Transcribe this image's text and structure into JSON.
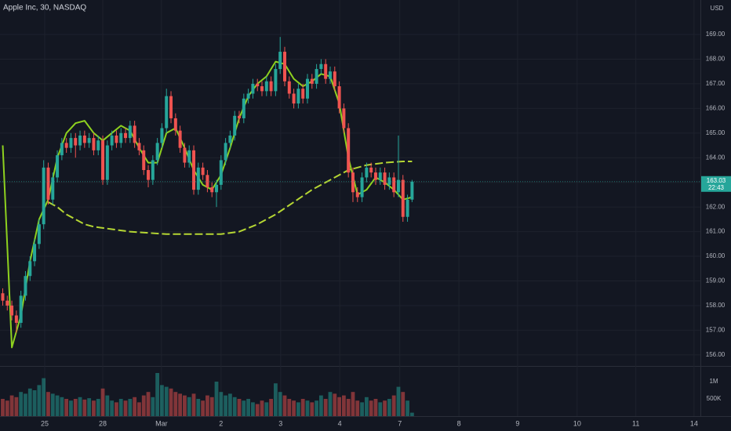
{
  "chart_data": {
    "type": "candlestick",
    "title": "Apple Inc, 30, NASDAQ",
    "currency": "USD",
    "last_price": 163.03,
    "countdown": "22:43",
    "up_color": "#26a69a",
    "down_color": "#ef5350",
    "xlim": [
      -0.6,
      153.4
    ],
    "xticks": [
      {
        "value": 9.23,
        "label": "25"
      },
      {
        "value": 22.0,
        "label": "28"
      },
      {
        "value": 34.9,
        "label": "Mar"
      },
      {
        "value": 48.0,
        "label": "2"
      },
      {
        "value": 61.1,
        "label": "3"
      },
      {
        "value": 74.1,
        "label": "4"
      },
      {
        "value": 87.3,
        "label": "7"
      },
      {
        "value": 100.3,
        "label": "8"
      },
      {
        "value": 113.2,
        "label": "9"
      },
      {
        "value": 126.3,
        "label": "10"
      },
      {
        "value": 139.2,
        "label": "11"
      },
      {
        "value": 152.0,
        "label": "14"
      }
    ],
    "ylim": [
      155.55,
      170.4
    ],
    "yticks": [
      {
        "value": 156,
        "label": "156.00"
      },
      {
        "value": 157,
        "label": "157.00"
      },
      {
        "value": 158,
        "label": "158.00"
      },
      {
        "value": 159,
        "label": "159.00"
      },
      {
        "value": 160,
        "label": "160.00"
      },
      {
        "value": 161,
        "label": "161.00"
      },
      {
        "value": 162,
        "label": "162.00"
      },
      {
        "value": 163,
        "label": "163.00"
      },
      {
        "value": 164,
        "label": "164.00"
      },
      {
        "value": 165,
        "label": "165.00"
      },
      {
        "value": 166,
        "label": "166.00"
      },
      {
        "value": 167,
        "label": "167.00"
      },
      {
        "value": 168,
        "label": "168.00"
      },
      {
        "value": 169,
        "label": "169.00"
      }
    ],
    "volume_ylim": [
      0,
      1386000
    ],
    "volume_yticks": [
      {
        "value": 500000,
        "label": "500K"
      },
      {
        "value": 1000000,
        "label": "1M"
      }
    ],
    "grid": true,
    "open": [
      158.5,
      158.2,
      158.0,
      157.6,
      157.3,
      158.4,
      159.2,
      159.8,
      160.5,
      161.3,
      163.6,
      162.3,
      163.2,
      164.1,
      164.6,
      164.4,
      164.8,
      164.5,
      164.9,
      164.6,
      164.8,
      164.3,
      164.7,
      163.1,
      164.5,
      164.9,
      164.6,
      165.0,
      164.8,
      165.3,
      164.6,
      164.3,
      163.5,
      163.1,
      163.9,
      164.6,
      165.2,
      166.5,
      165.6,
      165.1,
      164.4,
      163.8,
      164.3,
      162.7,
      163.6,
      163.3,
      162.8,
      162.6,
      162.9,
      163.9,
      164.6,
      164.9,
      165.7,
      165.6,
      166.4,
      166.6,
      167.0,
      166.9,
      166.7,
      167.1,
      166.7,
      167.6,
      168.3,
      167.1,
      166.6,
      166.2,
      166.8,
      166.4,
      167.2,
      167.0,
      167.6,
      167.8,
      167.2,
      167.5,
      166.9,
      166.0,
      165.2,
      163.4,
      162.6,
      162.4,
      163.2,
      163.6,
      163.4,
      163.1,
      163.4,
      162.9,
      163.2,
      162.6,
      163.1,
      161.6,
      162.3
    ],
    "high": [
      158.7,
      158.4,
      158.2,
      157.8,
      158.6,
      159.4,
      160.0,
      160.7,
      161.5,
      163.9,
      163.8,
      163.4,
      164.3,
      164.8,
      164.8,
      165.0,
      165.0,
      165.1,
      165.1,
      165.0,
      165.0,
      164.9,
      164.9,
      164.7,
      165.1,
      165.1,
      165.2,
      165.2,
      165.5,
      165.5,
      164.8,
      164.5,
      163.7,
      164.1,
      164.8,
      165.4,
      166.8,
      166.7,
      165.8,
      165.3,
      164.6,
      164.5,
      164.5,
      163.8,
      163.8,
      163.5,
      163.0,
      163.1,
      164.1,
      164.8,
      165.1,
      165.9,
      165.9,
      166.6,
      166.8,
      167.2,
      167.2,
      167.1,
      167.3,
      167.3,
      167.8,
      168.9,
      168.5,
      167.3,
      166.8,
      167.0,
      167.0,
      167.4,
      167.4,
      167.8,
      168.0,
      168.0,
      167.7,
      167.7,
      167.1,
      166.2,
      165.4,
      163.6,
      162.8,
      163.4,
      163.8,
      163.8,
      163.6,
      163.6,
      163.6,
      163.4,
      163.4,
      164.9,
      163.3,
      162.5,
      163.1
    ],
    "low": [
      158.0,
      157.8,
      157.4,
      156.9,
      157.1,
      158.2,
      159.0,
      159.6,
      160.3,
      161.1,
      162.1,
      162.1,
      163.0,
      163.9,
      164.2,
      164.2,
      164.0,
      164.3,
      164.4,
      164.4,
      164.1,
      164.1,
      162.9,
      162.9,
      164.3,
      164.4,
      164.4,
      164.6,
      164.6,
      164.4,
      164.1,
      163.3,
      162.8,
      162.9,
      163.7,
      164.4,
      165.0,
      165.4,
      164.9,
      164.2,
      163.6,
      163.6,
      162.5,
      162.5,
      163.1,
      162.6,
      162.4,
      162.0,
      162.7,
      163.7,
      164.4,
      164.7,
      165.4,
      165.4,
      166.2,
      166.4,
      166.7,
      166.5,
      166.5,
      166.5,
      166.5,
      167.4,
      166.9,
      166.4,
      166.0,
      166.0,
      166.2,
      166.2,
      166.8,
      166.8,
      167.4,
      167.0,
      167.0,
      166.7,
      165.8,
      165.0,
      163.2,
      162.2,
      162.2,
      162.2,
      163.0,
      163.2,
      162.9,
      162.9,
      162.7,
      162.7,
      162.4,
      162.4,
      161.4,
      161.4,
      162.2
    ],
    "close": [
      158.2,
      158.0,
      157.6,
      157.3,
      158.4,
      159.2,
      159.8,
      160.5,
      161.3,
      163.6,
      162.3,
      163.2,
      164.1,
      164.6,
      164.4,
      164.8,
      164.5,
      164.9,
      164.6,
      164.8,
      164.3,
      164.7,
      163.1,
      164.5,
      164.9,
      164.6,
      165.0,
      164.8,
      165.3,
      164.6,
      164.3,
      163.5,
      163.1,
      163.9,
      164.6,
      165.2,
      166.5,
      165.6,
      165.1,
      164.4,
      163.8,
      164.3,
      162.7,
      163.6,
      163.3,
      162.8,
      162.6,
      162.9,
      163.9,
      164.6,
      164.9,
      165.7,
      165.6,
      166.4,
      166.6,
      167.0,
      166.9,
      166.7,
      167.1,
      166.7,
      167.6,
      168.3,
      167.1,
      166.6,
      166.2,
      166.8,
      166.4,
      167.2,
      167.0,
      167.6,
      167.8,
      167.2,
      167.5,
      166.9,
      166.0,
      165.2,
      163.4,
      162.6,
      162.4,
      163.2,
      163.6,
      163.4,
      163.1,
      163.4,
      162.9,
      163.2,
      162.6,
      163.1,
      161.6,
      162.3,
      163.03
    ],
    "volume": [
      500000,
      450000,
      600000,
      550000,
      700000,
      650000,
      800000,
      750000,
      900000,
      1100000,
      700000,
      650000,
      600000,
      550000,
      500000,
      450000,
      500000,
      550000,
      480000,
      520000,
      450000,
      500000,
      800000,
      600000,
      450000,
      400000,
      500000,
      450000,
      500000,
      550000,
      400000,
      600000,
      700000,
      550000,
      1250000,
      900000,
      850000,
      800000,
      700000,
      650000,
      600000,
      550000,
      650000,
      500000,
      450000,
      600000,
      550000,
      1000000,
      700000,
      600000,
      650000,
      550000,
      500000,
      450000,
      500000,
      400000,
      350000,
      450000,
      400000,
      500000,
      950000,
      700000,
      600000,
      500000,
      450000,
      400000,
      500000,
      450000,
      400000,
      450000,
      600000,
      500000,
      700000,
      650000,
      550000,
      600000,
      500000,
      700000,
      450000,
      400000,
      550000,
      450000,
      500000,
      400000,
      450000,
      500000,
      600000,
      850000,
      700000,
      450000,
      100000
    ],
    "series": [
      {
        "color": "#8ed11f",
        "dashed": false,
        "x": [
          0,
          2,
          4,
          6,
          8,
          10,
          12,
          14,
          16,
          18,
          20,
          22,
          24,
          26,
          28,
          30,
          32,
          34,
          36,
          38,
          40,
          42,
          44,
          46,
          48,
          50,
          52,
          54,
          56,
          58,
          60,
          62,
          64,
          66,
          68,
          70,
          72,
          74,
          76,
          78,
          80,
          82,
          84,
          86,
          88,
          90
        ],
        "values": [
          164.5,
          156.3,
          157.6,
          159.8,
          161.5,
          162.3,
          164.0,
          165.0,
          165.4,
          165.5,
          165.0,
          164.7,
          165.0,
          165.3,
          165.1,
          164.4,
          163.8,
          163.8,
          165.0,
          165.2,
          164.4,
          163.5,
          162.9,
          162.7,
          163.3,
          164.4,
          165.6,
          166.5,
          167.0,
          167.3,
          167.9,
          167.8,
          167.2,
          166.9,
          167.1,
          167.4,
          167.3,
          166.2,
          164.0,
          162.5,
          162.7,
          163.2,
          163.0,
          162.7,
          162.3,
          162.4
        ]
      },
      {
        "color": "#b5d633",
        "dashed": true,
        "x": [
          10,
          12,
          14,
          16,
          18,
          20,
          24,
          28,
          32,
          36,
          40,
          44,
          48,
          52,
          56,
          60,
          64,
          68,
          72,
          76,
          80,
          84,
          88,
          90
        ],
        "values": [
          162.2,
          162.0,
          161.7,
          161.5,
          161.3,
          161.2,
          161.1,
          161.0,
          160.95,
          160.9,
          160.9,
          160.9,
          160.9,
          161.0,
          161.3,
          161.7,
          162.2,
          162.7,
          163.1,
          163.5,
          163.7,
          163.8,
          163.85,
          163.85
        ]
      }
    ]
  }
}
